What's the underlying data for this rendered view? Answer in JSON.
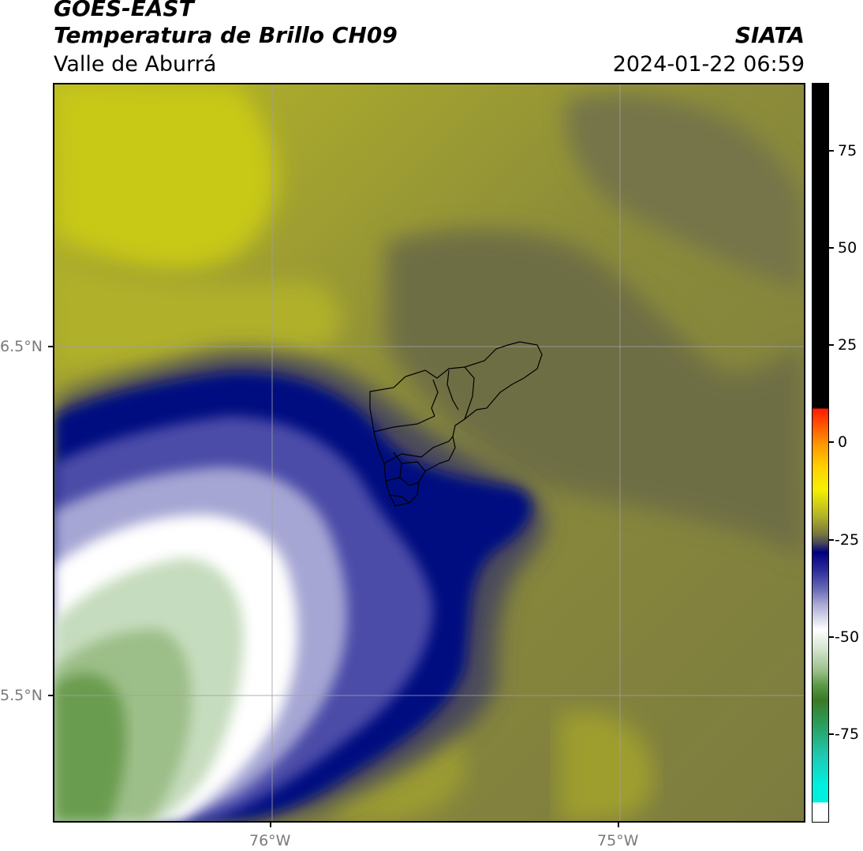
{
  "header": {
    "title_line1": "GOES-EAST",
    "title_line2": "Temperatura de Brillo CH09",
    "subtitle": "Valle de Aburrá",
    "organization": "SIATA",
    "datetime": "2024-01-22 06:59"
  },
  "map": {
    "type": "brightness-temperature-map",
    "longitude_ticks": [
      "76°W",
      "75°W"
    ],
    "latitude_ticks": [
      "6.5°N",
      "5.5°N"
    ],
    "gridlines": true,
    "overlay": "Valle de Aburrá municipal boundaries"
  },
  "colorbar": {
    "ticks": [
      "75",
      "50",
      "25",
      "0",
      "-25",
      "-50",
      "-75"
    ],
    "colors": {
      "warm_above": "#000000",
      "red": "#ff1a00",
      "orange": "#ff9a00",
      "yellow": "#f5f000",
      "olive": "#b4b426",
      "dark_olive": "#77773e",
      "slate": "#43435a",
      "navy": "#000080",
      "periwinkle": "#a8a8d4",
      "white": "#ffffff",
      "pale_green": "#d6e6d0",
      "green": "#5a9a48",
      "teal": "#20c8b0",
      "cyan": "#00f0e0"
    }
  }
}
